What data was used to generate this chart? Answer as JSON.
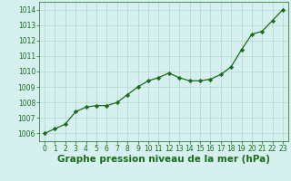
{
  "x": [
    0,
    1,
    2,
    3,
    4,
    5,
    6,
    7,
    8,
    9,
    10,
    11,
    12,
    13,
    14,
    15,
    16,
    17,
    18,
    19,
    20,
    21,
    22,
    23
  ],
  "y": [
    1006.0,
    1006.3,
    1006.6,
    1007.4,
    1007.7,
    1007.8,
    1007.8,
    1008.0,
    1008.5,
    1009.0,
    1009.4,
    1009.6,
    1009.9,
    1009.6,
    1009.4,
    1009.4,
    1009.5,
    1009.8,
    1010.3,
    1011.4,
    1012.4,
    1012.6,
    1013.3,
    1014.0
  ],
  "line_color": "#1a6b1a",
  "marker": "D",
  "marker_size": 2.2,
  "bg_color": "#d6f0f0",
  "grid_color": "#b0d8c8",
  "xlabel": "Graphe pression niveau de la mer (hPa)",
  "xlabel_fontsize": 7.5,
  "xlabel_color": "#1a6b1a",
  "ylim": [
    1005.5,
    1014.5
  ],
  "yticks": [
    1006,
    1007,
    1008,
    1009,
    1010,
    1011,
    1012,
    1013,
    1014
  ],
  "xticks": [
    0,
    1,
    2,
    3,
    4,
    5,
    6,
    7,
    8,
    9,
    10,
    11,
    12,
    13,
    14,
    15,
    16,
    17,
    18,
    19,
    20,
    21,
    22,
    23
  ],
  "tick_fontsize": 5.5,
  "tick_color": "#1a6b1a",
  "line_width": 0.9
}
